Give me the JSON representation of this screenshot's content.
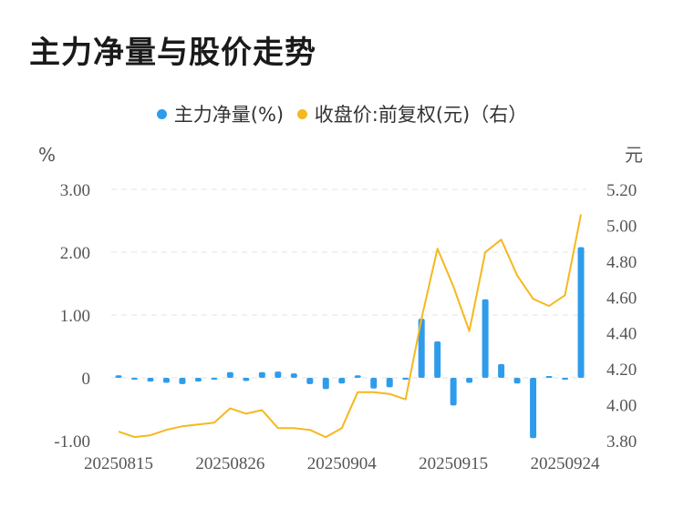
{
  "title": "主力净量与股价走势",
  "colors": {
    "bar": "#2f9ceb",
    "line": "#f5b820",
    "grid": "#e3e3e3",
    "text": "#555555"
  },
  "chart_data": {
    "type": "bar+line",
    "legend": [
      {
        "label": "主力净量(%)",
        "color": "#2f9ceb"
      },
      {
        "label": "收盘价:前复权(元)（右）",
        "color": "#f5b820"
      }
    ],
    "left_unit": "%",
    "right_unit": "元",
    "ylim_left": [
      -1.0,
      3.0
    ],
    "ylim_right": [
      3.8,
      5.2
    ],
    "left_ticks": [
      {
        "value": 3.0,
        "label": "3.00"
      },
      {
        "value": 2.0,
        "label": "2.00"
      },
      {
        "value": 1.0,
        "label": "1.00"
      },
      {
        "value": 0.0,
        "label": "0"
      },
      {
        "value": -1.0,
        "label": "-1.00"
      }
    ],
    "right_ticks": [
      {
        "value": 5.2,
        "label": "5.20"
      },
      {
        "value": 5.0,
        "label": "5.00"
      },
      {
        "value": 4.8,
        "label": "4.80"
      },
      {
        "value": 4.6,
        "label": "4.60"
      },
      {
        "value": 4.4,
        "label": "4.40"
      },
      {
        "value": 4.2,
        "label": "4.20"
      },
      {
        "value": 4.0,
        "label": "4.00"
      },
      {
        "value": 3.8,
        "label": "3.80"
      }
    ],
    "x_labels": [
      {
        "index": 0,
        "label": "20250815"
      },
      {
        "index": 7,
        "label": "20250826"
      },
      {
        "index": 14,
        "label": "20250904"
      },
      {
        "index": 21,
        "label": "20250915"
      },
      {
        "index": 28,
        "label": "20250924"
      }
    ],
    "bars": [
      0.04,
      -0.02,
      -0.06,
      -0.08,
      -0.1,
      -0.06,
      -0.02,
      0.09,
      -0.05,
      0.09,
      0.1,
      0.07,
      -0.1,
      -0.18,
      -0.09,
      0.04,
      -0.17,
      -0.15,
      -0.02,
      0.94,
      0.58,
      -0.44,
      -0.08,
      1.25,
      0.22,
      -0.09,
      -0.96,
      0.02,
      -0.02,
      2.08
    ],
    "prices": [
      3.85,
      3.82,
      3.83,
      3.86,
      3.88,
      3.89,
      3.9,
      3.98,
      3.95,
      3.97,
      3.87,
      3.87,
      3.86,
      3.82,
      3.87,
      4.07,
      4.07,
      4.06,
      4.03,
      4.48,
      4.87,
      4.66,
      4.41,
      4.85,
      4.92,
      4.72,
      4.59,
      4.55,
      4.61,
      5.06
    ]
  }
}
